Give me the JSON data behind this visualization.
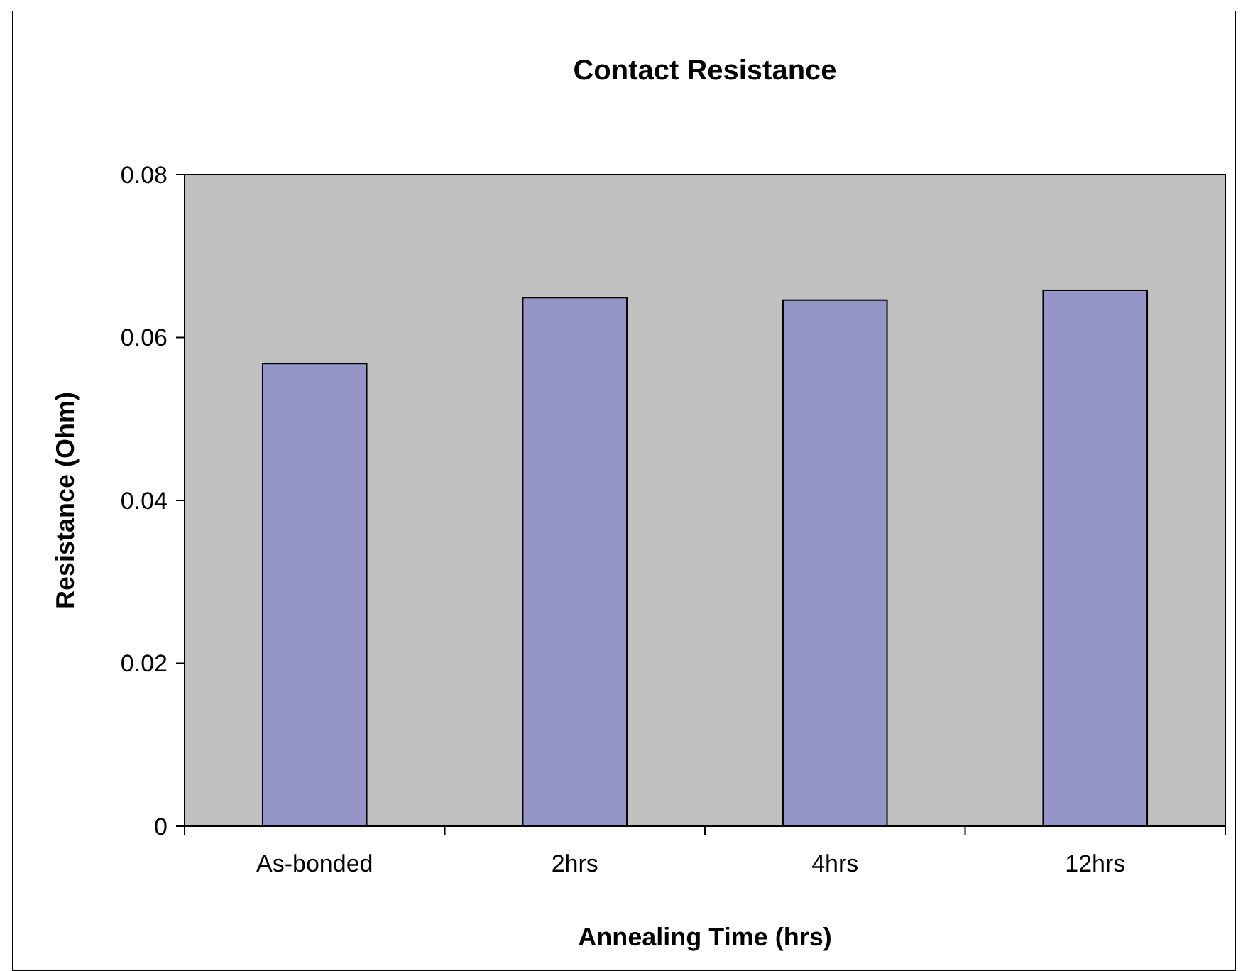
{
  "chart_data": {
    "type": "bar",
    "title": "Contact Resistance",
    "xlabel": "Annealing Time (hrs)",
    "ylabel": "Resistance (Ohm)",
    "categories": [
      "As-bonded",
      "2hrs",
      "4hrs",
      "12hrs"
    ],
    "values": [
      0.0568,
      0.0649,
      0.0646,
      0.0658
    ],
    "color": "#9595c8",
    "ylim": [
      0,
      0.08
    ],
    "yticks": [
      0,
      0.02,
      0.04,
      0.06,
      0.08
    ],
    "grid": false
  }
}
